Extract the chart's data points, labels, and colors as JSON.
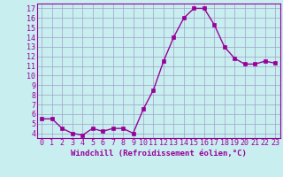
{
  "x": [
    0,
    1,
    2,
    3,
    4,
    5,
    6,
    7,
    8,
    9,
    10,
    11,
    12,
    13,
    14,
    15,
    16,
    17,
    18,
    19,
    20,
    21,
    22,
    23
  ],
  "y": [
    5.5,
    5.5,
    4.5,
    4.0,
    3.8,
    4.5,
    4.2,
    4.5,
    4.5,
    4.0,
    6.5,
    8.5,
    11.5,
    14.0,
    16.0,
    17.0,
    17.0,
    15.3,
    13.0,
    11.8,
    11.2,
    11.2,
    11.5,
    11.3
  ],
  "line_color": "#990099",
  "marker": "s",
  "marker_size": 2.2,
  "line_width": 1.0,
  "bg_color": "#c8eef0",
  "grid_color": "#a0a0c8",
  "xlabel": "Windchill (Refroidissement éolien,°C)",
  "ylabel_ticks": [
    4,
    5,
    6,
    7,
    8,
    9,
    10,
    11,
    12,
    13,
    14,
    15,
    16,
    17
  ],
  "xlim": [
    -0.5,
    23.5
  ],
  "ylim": [
    3.5,
    17.5
  ],
  "xticks": [
    0,
    1,
    2,
    3,
    4,
    5,
    6,
    7,
    8,
    9,
    10,
    11,
    12,
    13,
    14,
    15,
    16,
    17,
    18,
    19,
    20,
    21,
    22,
    23
  ],
  "xlabel_fontsize": 6.5,
  "tick_fontsize": 6.0
}
